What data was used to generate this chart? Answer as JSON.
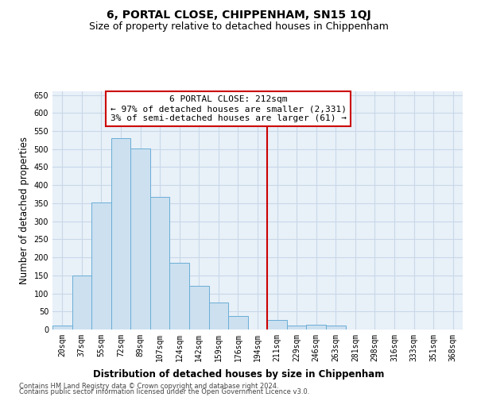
{
  "title": "6, PORTAL CLOSE, CHIPPENHAM, SN15 1QJ",
  "subtitle": "Size of property relative to detached houses in Chippenham",
  "xlabel": "Distribution of detached houses by size in Chippenham",
  "ylabel": "Number of detached properties",
  "categories": [
    "20sqm",
    "37sqm",
    "55sqm",
    "72sqm",
    "89sqm",
    "107sqm",
    "124sqm",
    "142sqm",
    "159sqm",
    "176sqm",
    "194sqm",
    "211sqm",
    "229sqm",
    "246sqm",
    "263sqm",
    "281sqm",
    "298sqm",
    "316sqm",
    "333sqm",
    "351sqm",
    "368sqm"
  ],
  "bar_heights": [
    12,
    150,
    352,
    530,
    502,
    367,
    185,
    121,
    75,
    38,
    0,
    26,
    12,
    13,
    10,
    0,
    0,
    0,
    0,
    0,
    0
  ],
  "bar_color": "#cce0f0",
  "bar_edge_color": "#6aaed6",
  "vline_x_index": 10.5,
  "vline_color": "#cc0000",
  "annotation_text": "6 PORTAL CLOSE: 212sqm\n← 97% of detached houses are smaller (2,331)\n3% of semi-detached houses are larger (61) →",
  "annotation_box_color": "#cc0000",
  "ylim": [
    0,
    660
  ],
  "yticks": [
    0,
    50,
    100,
    150,
    200,
    250,
    300,
    350,
    400,
    450,
    500,
    550,
    600,
    650
  ],
  "grid_color": "#c8d8e8",
  "bg_color": "#e8f0f8",
  "footer1": "Contains HM Land Registry data © Crown copyright and database right 2024.",
  "footer2": "Contains public sector information licensed under the Open Government Licence v3.0.",
  "title_fontsize": 10,
  "subtitle_fontsize": 9,
  "axis_label_fontsize": 8.5,
  "tick_fontsize": 7,
  "annotation_fontsize": 8,
  "footer_fontsize": 6
}
